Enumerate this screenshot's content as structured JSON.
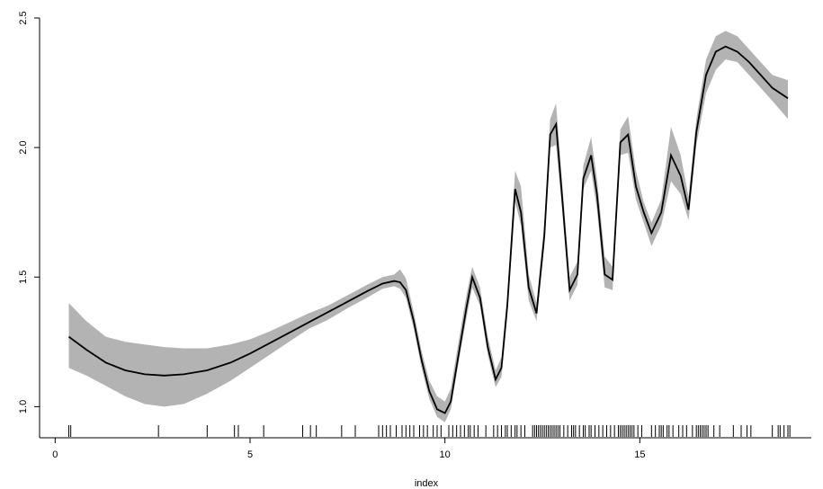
{
  "chart_data": {
    "type": "line",
    "title": "",
    "xlabel": "index",
    "ylabel": "",
    "xlim": [
      -0.4,
      19.4
    ],
    "ylim": [
      0.88,
      2.5
    ],
    "xticks": [
      0,
      5,
      10,
      15
    ],
    "yticks": [
      1.0,
      1.5,
      2.0,
      2.5
    ],
    "xtick_labels": [
      "0",
      "5",
      "10",
      "15"
    ],
    "ytick_labels": [
      "1.0",
      "1.5",
      "2.0",
      "2.5"
    ],
    "grid": false,
    "legend": "none",
    "colors": {
      "line": "#000000",
      "band": "#b3b3b3",
      "rug": "#000000"
    },
    "series": [
      {
        "x": [
          0.35,
          0.8,
          1.3,
          1.8,
          2.3,
          2.8,
          3.3,
          3.9,
          4.5,
          5.0,
          5.5,
          6.0,
          6.5,
          7.0,
          7.5,
          8.0,
          8.4,
          8.7,
          8.85,
          9.0,
          9.2,
          9.4,
          9.6,
          9.8,
          10.0,
          10.15,
          10.35,
          10.55,
          10.7,
          10.9,
          11.1,
          11.3,
          11.45,
          11.6,
          11.8,
          11.95,
          12.15,
          12.35,
          12.55,
          12.7,
          12.85,
          13.0,
          13.2,
          13.4,
          13.55,
          13.75,
          13.9,
          14.1,
          14.3,
          14.5,
          14.7,
          14.9,
          15.1,
          15.3,
          15.55,
          15.8,
          16.05,
          16.25,
          16.45,
          16.7,
          16.95,
          17.2,
          17.5,
          17.8,
          18.1,
          18.4,
          18.8
        ],
        "y": [
          1.27,
          1.22,
          1.17,
          1.14,
          1.125,
          1.12,
          1.125,
          1.14,
          1.17,
          1.205,
          1.245,
          1.285,
          1.325,
          1.365,
          1.405,
          1.445,
          1.475,
          1.485,
          1.48,
          1.45,
          1.33,
          1.18,
          1.06,
          0.99,
          0.975,
          1.02,
          1.2,
          1.38,
          1.5,
          1.42,
          1.23,
          1.105,
          1.15,
          1.39,
          1.84,
          1.75,
          1.46,
          1.36,
          1.66,
          2.05,
          2.09,
          1.82,
          1.45,
          1.51,
          1.88,
          1.97,
          1.82,
          1.51,
          1.49,
          2.02,
          2.05,
          1.85,
          1.75,
          1.67,
          1.75,
          1.97,
          1.89,
          1.76,
          2.06,
          2.28,
          2.37,
          2.39,
          2.37,
          2.33,
          2.28,
          2.23,
          2.19
        ],
        "lower": [
          1.15,
          1.12,
          1.08,
          1.04,
          1.01,
          1.0,
          1.01,
          1.05,
          1.1,
          1.15,
          1.2,
          1.25,
          1.3,
          1.335,
          1.38,
          1.42,
          1.455,
          1.465,
          1.455,
          1.42,
          1.3,
          1.15,
          1.03,
          0.96,
          0.94,
          0.99,
          1.17,
          1.34,
          1.46,
          1.39,
          1.2,
          1.075,
          1.115,
          1.35,
          1.79,
          1.7,
          1.41,
          1.33,
          1.62,
          2.0,
          2.01,
          1.77,
          1.41,
          1.47,
          1.84,
          1.91,
          1.76,
          1.46,
          1.45,
          1.97,
          1.98,
          1.8,
          1.71,
          1.62,
          1.7,
          1.87,
          1.82,
          1.72,
          2.01,
          2.21,
          2.3,
          2.34,
          2.33,
          2.28,
          2.23,
          2.18,
          2.11
        ],
        "upper": [
          1.4,
          1.33,
          1.27,
          1.25,
          1.24,
          1.23,
          1.225,
          1.225,
          1.24,
          1.26,
          1.29,
          1.325,
          1.36,
          1.39,
          1.43,
          1.47,
          1.5,
          1.51,
          1.53,
          1.495,
          1.365,
          1.215,
          1.1,
          1.04,
          1.02,
          1.07,
          1.25,
          1.43,
          1.54,
          1.46,
          1.27,
          1.14,
          1.19,
          1.43,
          1.91,
          1.85,
          1.51,
          1.4,
          1.71,
          2.11,
          2.17,
          1.88,
          1.5,
          1.56,
          1.93,
          2.04,
          1.88,
          1.58,
          1.54,
          2.07,
          2.12,
          1.91,
          1.79,
          1.71,
          1.8,
          2.08,
          1.97,
          1.81,
          2.11,
          2.34,
          2.43,
          2.45,
          2.43,
          2.38,
          2.33,
          2.28,
          2.26
        ]
      }
    ],
    "rug": [
      0.35,
      0.4,
      2.65,
      3.9,
      4.6,
      4.7,
      5.35,
      6.35,
      6.55,
      6.7,
      7.35,
      7.7,
      8.3,
      8.4,
      8.5,
      8.6,
      8.75,
      8.9,
      9.0,
      9.1,
      9.2,
      9.35,
      9.45,
      9.55,
      9.7,
      9.8,
      9.9,
      10.1,
      10.2,
      10.3,
      10.4,
      10.5,
      10.6,
      10.65,
      10.75,
      10.85,
      11.05,
      11.25,
      11.35,
      11.45,
      11.55,
      11.6,
      11.7,
      11.8,
      11.85,
      11.95,
      12.05,
      12.25,
      12.3,
      12.35,
      12.4,
      12.45,
      12.5,
      12.55,
      12.6,
      12.65,
      12.7,
      12.75,
      12.8,
      12.85,
      12.9,
      12.95,
      13.05,
      13.15,
      13.25,
      13.3,
      13.35,
      13.45,
      13.55,
      13.6,
      13.7,
      13.75,
      13.85,
      13.95,
      14.05,
      14.15,
      14.25,
      14.35,
      14.45,
      14.5,
      14.55,
      14.6,
      14.65,
      14.7,
      14.75,
      14.8,
      14.85,
      14.95,
      15.05,
      15.3,
      15.4,
      15.5,
      15.55,
      15.6,
      15.7,
      15.75,
      15.85,
      16.0,
      16.1,
      16.2,
      16.35,
      16.45,
      16.5,
      16.55,
      16.6,
      16.65,
      16.7,
      16.75,
      16.9,
      17.05,
      17.4,
      17.6,
      17.75,
      17.85,
      18.4,
      18.55,
      18.6,
      18.7,
      18.8,
      18.85
    ]
  }
}
